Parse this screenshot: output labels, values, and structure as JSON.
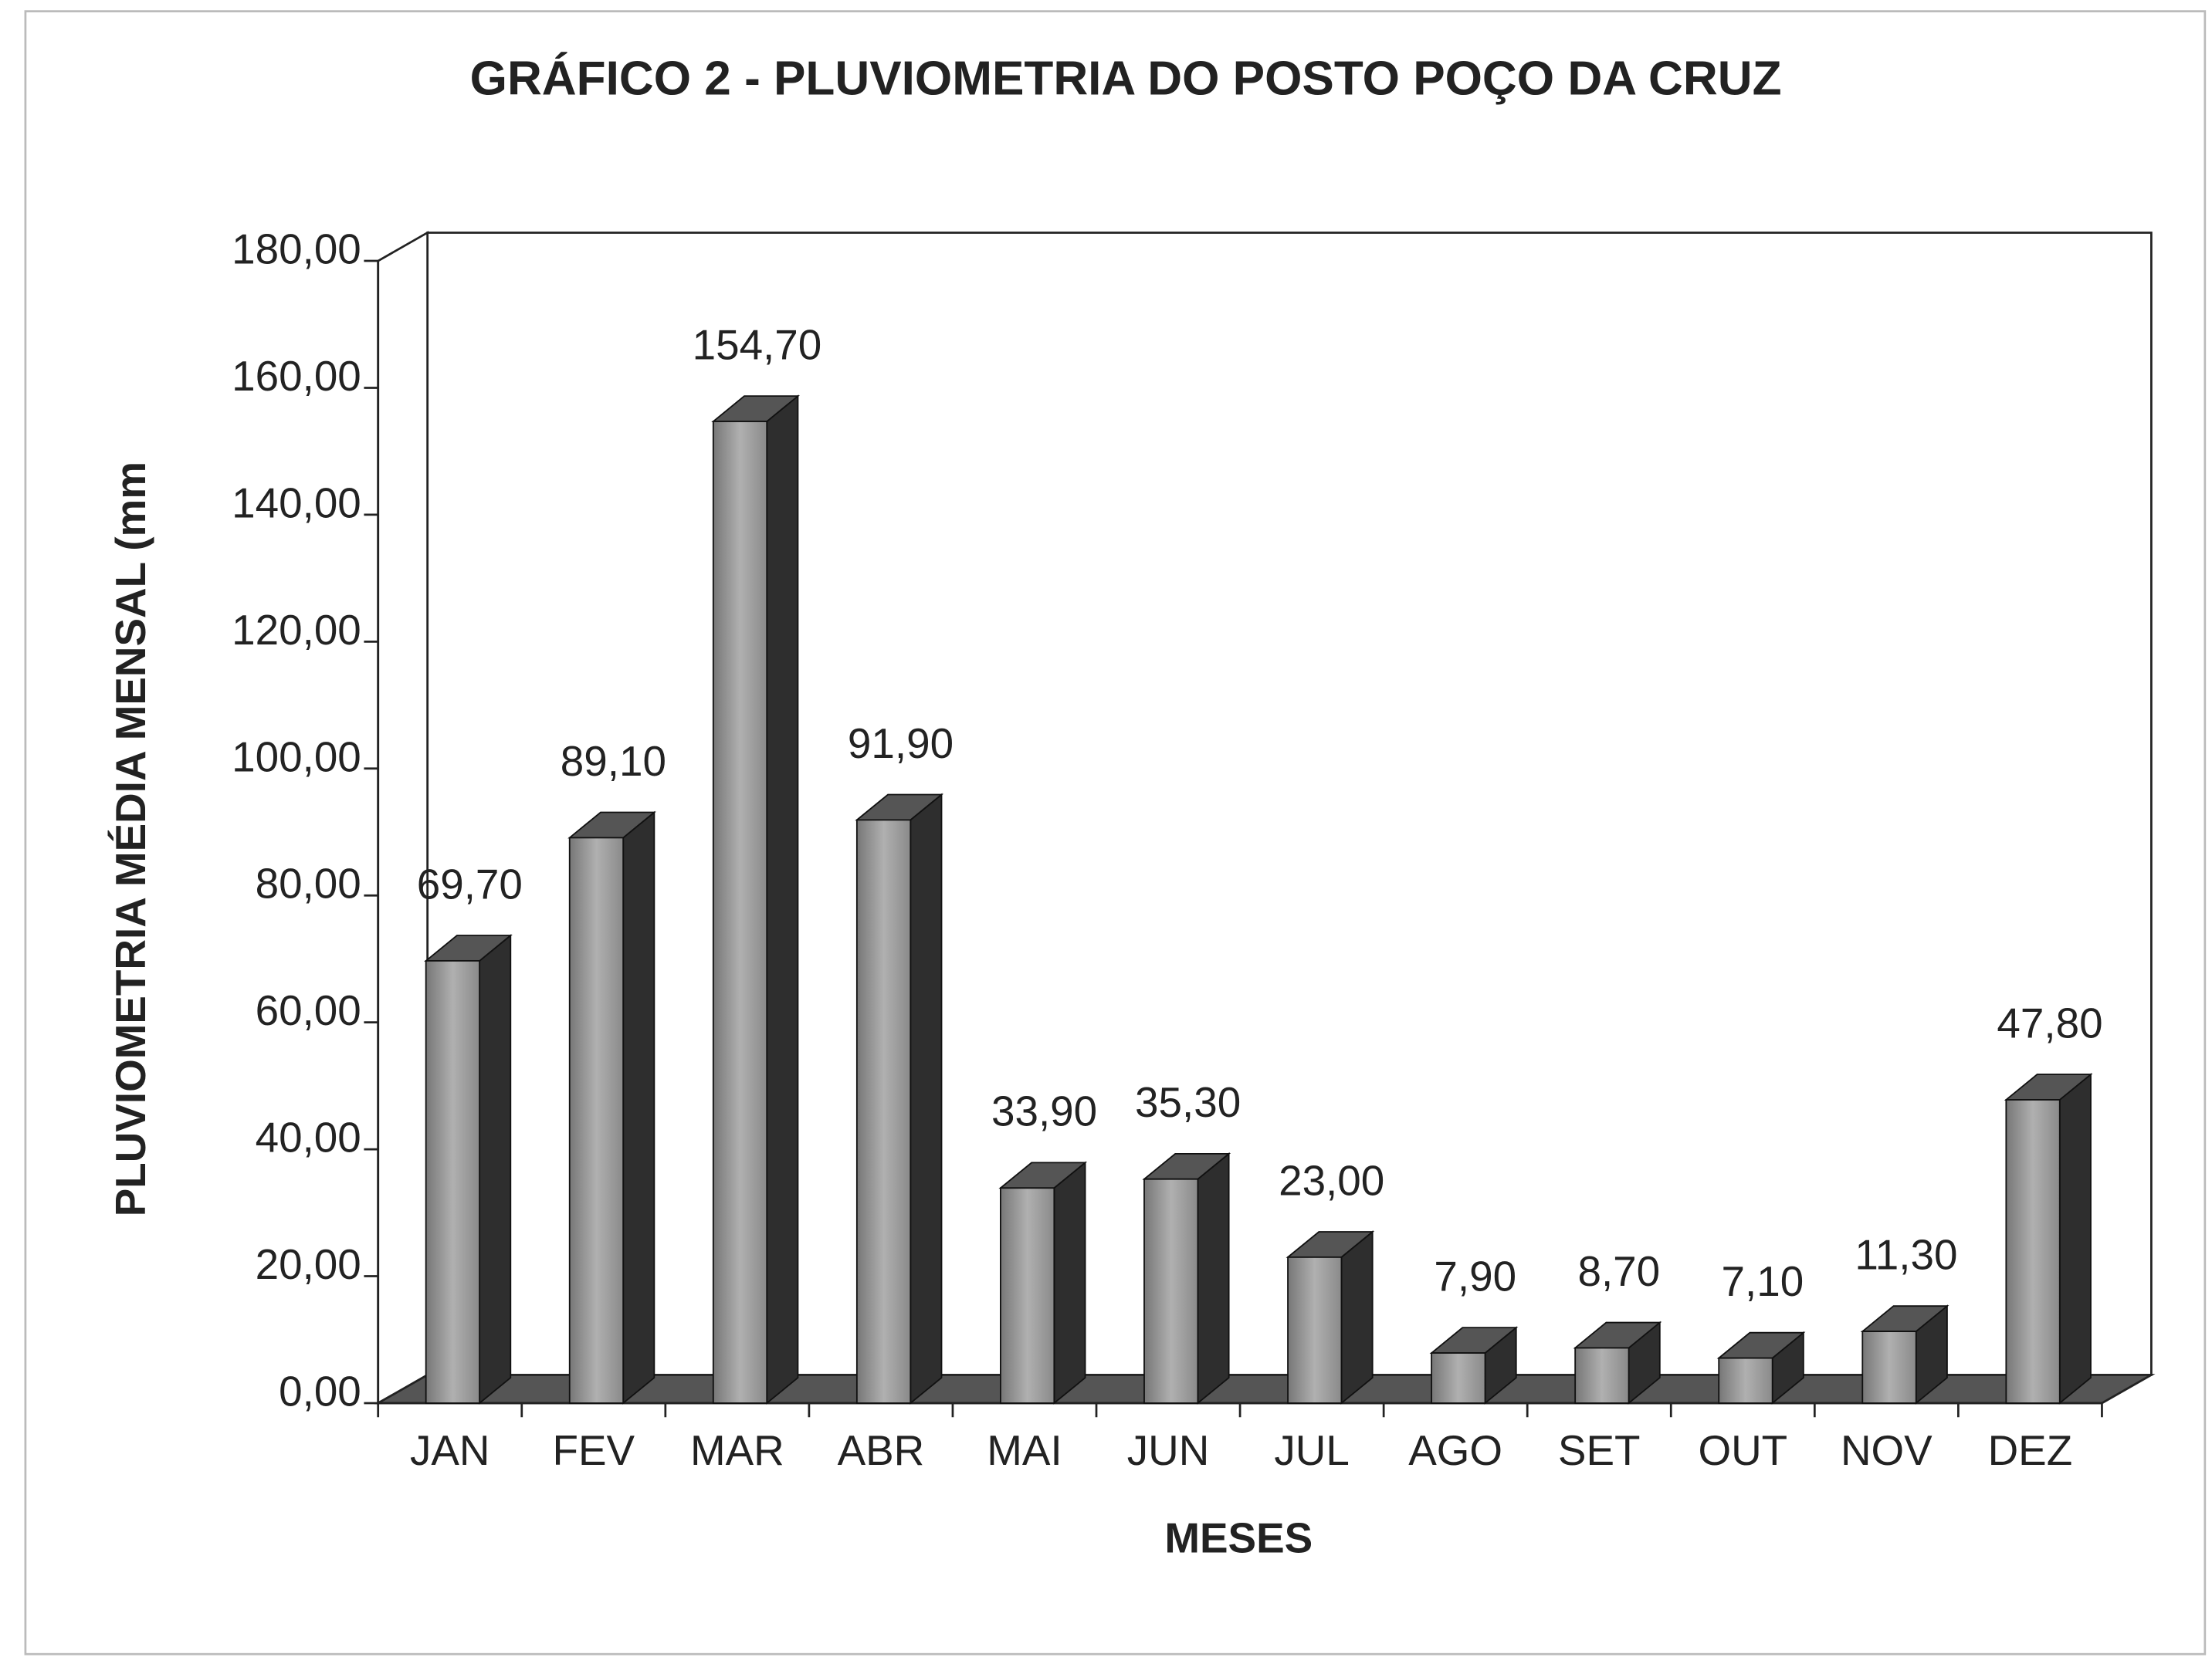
{
  "chart_data": {
    "type": "bar3d",
    "title": "GRÁFICO 2 - PLUVIOMETRIA DO POSTO POÇO DA CRUZ",
    "y_label": "PLUVIOMETRIA MÉDIA MENSAL (mm",
    "x_label": "MESES",
    "categories": [
      "JAN",
      "FEV",
      "MAR",
      "ABR",
      "MAI",
      "JUN",
      "JUL",
      "AGO",
      "SET",
      "OUT",
      "NOV",
      "DEZ"
    ],
    "values": [
      69.7,
      89.1,
      154.7,
      91.9,
      33.9,
      35.3,
      23.0,
      7.9,
      8.7,
      7.1,
      11.3,
      47.8
    ],
    "value_labels": [
      "69,70",
      "89,10",
      "154,70",
      "91,90",
      "33,90",
      "35,30",
      "23,00",
      "7,90",
      "8,70",
      "7,10",
      "11,30",
      "47,80"
    ],
    "color": "#9a9a9a",
    "ylim": [
      0,
      180
    ],
    "yticks": [
      {
        "value": 0,
        "label": "0,00"
      },
      {
        "value": 20,
        "label": "20,00"
      },
      {
        "value": 40,
        "label": "40,00"
      },
      {
        "value": 60,
        "label": "60,00"
      },
      {
        "value": 80,
        "label": "80,00"
      },
      {
        "value": 100,
        "label": "100,00"
      },
      {
        "value": 120,
        "label": "120,00"
      },
      {
        "value": 140,
        "label": "140,00"
      },
      {
        "value": 160,
        "label": "160,00"
      },
      {
        "value": 180,
        "label": "180,00"
      }
    ],
    "grid": false
  }
}
